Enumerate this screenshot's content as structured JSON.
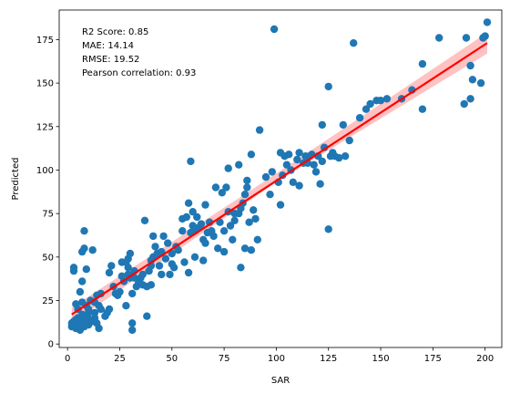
{
  "chart_data": {
    "type": "scatter",
    "title": "",
    "xlabel": "SAR",
    "ylabel": "Predicted",
    "xlim": [
      -4,
      208
    ],
    "ylim": [
      -2,
      192
    ],
    "xticks": [
      0,
      25,
      50,
      75,
      100,
      125,
      150,
      175,
      200
    ],
    "yticks": [
      0,
      25,
      50,
      75,
      100,
      125,
      150,
      175
    ],
    "grid": false,
    "annotations": [
      "R2 Score: 0.85",
      "MAE: 14.14",
      "RMSE: 19.52",
      "Pearson correlation: 0.93"
    ],
    "colors": {
      "points": "#1f77b4",
      "fit_line": "#ff0000",
      "confidence_band": "#ffb3b3"
    },
    "fit_line": {
      "x": [
        2,
        201
      ],
      "y": [
        17,
        173
      ]
    },
    "confidence_band": {
      "x": [
        2,
        100,
        201
      ],
      "lower": [
        12,
        93,
        167
      ],
      "upper": [
        21,
        98,
        179
      ]
    },
    "points": [
      [
        2,
        10
      ],
      [
        2,
        12
      ],
      [
        3,
        11
      ],
      [
        3,
        13
      ],
      [
        4,
        9
      ],
      [
        4,
        14
      ],
      [
        5,
        12
      ],
      [
        5,
        15
      ],
      [
        6,
        8
      ],
      [
        6,
        11
      ],
      [
        7,
        13
      ],
      [
        7,
        17
      ],
      [
        8,
        10
      ],
      [
        8,
        14
      ],
      [
        9,
        12
      ],
      [
        9,
        16
      ],
      [
        10,
        11
      ],
      [
        10,
        18
      ],
      [
        11,
        14
      ],
      [
        12,
        13
      ],
      [
        13,
        15
      ],
      [
        14,
        12
      ],
      [
        3,
        44
      ],
      [
        3,
        42
      ],
      [
        4,
        23
      ],
      [
        5,
        20
      ],
      [
        6,
        30
      ],
      [
        7,
        24
      ],
      [
        7,
        36
      ],
      [
        7,
        53
      ],
      [
        8,
        65
      ],
      [
        8,
        55
      ],
      [
        9,
        22
      ],
      [
        9,
        43
      ],
      [
        10,
        20
      ],
      [
        11,
        25
      ],
      [
        12,
        54
      ],
      [
        13,
        18
      ],
      [
        13,
        24
      ],
      [
        14,
        28
      ],
      [
        15,
        9
      ],
      [
        15,
        22
      ],
      [
        16,
        29
      ],
      [
        16,
        20
      ],
      [
        18,
        16
      ],
      [
        19,
        18
      ],
      [
        20,
        20
      ],
      [
        20,
        41
      ],
      [
        21,
        45
      ],
      [
        22,
        33
      ],
      [
        23,
        29
      ],
      [
        24,
        28
      ],
      [
        25,
        30
      ],
      [
        26,
        39
      ],
      [
        26,
        47
      ],
      [
        27,
        36
      ],
      [
        28,
        22
      ],
      [
        28,
        47
      ],
      [
        29,
        40
      ],
      [
        29,
        44
      ],
      [
        29,
        49
      ],
      [
        30,
        38
      ],
      [
        30,
        52
      ],
      [
        31,
        29
      ],
      [
        31,
        8
      ],
      [
        31,
        12
      ],
      [
        32,
        38
      ],
      [
        32,
        42
      ],
      [
        33,
        33
      ],
      [
        34,
        35
      ],
      [
        35,
        38
      ],
      [
        36,
        40
      ],
      [
        36,
        34
      ],
      [
        37,
        71
      ],
      [
        38,
        33
      ],
      [
        38,
        16
      ],
      [
        39,
        42
      ],
      [
        40,
        45
      ],
      [
        40,
        48
      ],
      [
        40,
        34
      ],
      [
        41,
        62
      ],
      [
        41,
        50
      ],
      [
        42,
        56
      ],
      [
        43,
        52
      ],
      [
        44,
        45
      ],
      [
        45,
        40
      ],
      [
        45,
        53
      ],
      [
        46,
        62
      ],
      [
        47,
        49
      ],
      [
        48,
        58
      ],
      [
        49,
        40
      ],
      [
        50,
        52
      ],
      [
        50,
        46
      ],
      [
        51,
        44
      ],
      [
        52,
        56
      ],
      [
        53,
        54
      ],
      [
        55,
        65
      ],
      [
        55,
        72
      ],
      [
        56,
        47
      ],
      [
        57,
        73
      ],
      [
        58,
        81
      ],
      [
        58,
        41
      ],
      [
        59,
        64
      ],
      [
        59,
        105
      ],
      [
        60,
        68
      ],
      [
        60,
        76
      ],
      [
        61,
        50
      ],
      [
        61,
        65
      ],
      [
        62,
        73
      ],
      [
        63,
        67
      ],
      [
        64,
        69
      ],
      [
        65,
        60
      ],
      [
        65,
        48
      ],
      [
        66,
        80
      ],
      [
        66,
        58
      ],
      [
        67,
        64
      ],
      [
        68,
        70
      ],
      [
        69,
        65
      ],
      [
        70,
        62
      ],
      [
        71,
        90
      ],
      [
        72,
        55
      ],
      [
        73,
        70
      ],
      [
        74,
        87
      ],
      [
        75,
        65
      ],
      [
        75,
        53
      ],
      [
        76,
        90
      ],
      [
        77,
        76
      ],
      [
        77,
        101
      ],
      [
        78,
        68
      ],
      [
        79,
        60
      ],
      [
        80,
        71
      ],
      [
        80,
        75
      ],
      [
        82,
        103
      ],
      [
        82,
        75
      ],
      [
        83,
        78
      ],
      [
        83,
        44
      ],
      [
        84,
        81
      ],
      [
        85,
        55
      ],
      [
        85,
        86
      ],
      [
        86,
        94
      ],
      [
        86,
        90
      ],
      [
        87,
        70
      ],
      [
        88,
        109
      ],
      [
        88,
        54
      ],
      [
        89,
        77
      ],
      [
        90,
        72
      ],
      [
        91,
        60
      ],
      [
        92,
        123
      ],
      [
        95,
        96
      ],
      [
        97,
        86
      ],
      [
        98,
        99
      ],
      [
        99,
        181
      ],
      [
        101,
        93
      ],
      [
        102,
        80
      ],
      [
        102,
        110
      ],
      [
        103,
        97
      ],
      [
        104,
        108
      ],
      [
        105,
        103
      ],
      [
        106,
        109
      ],
      [
        107,
        100
      ],
      [
        108,
        93
      ],
      [
        110,
        106
      ],
      [
        111,
        91
      ],
      [
        111,
        110
      ],
      [
        113,
        104
      ],
      [
        114,
        108
      ],
      [
        115,
        104
      ],
      [
        116,
        108
      ],
      [
        117,
        109
      ],
      [
        118,
        103
      ],
      [
        119,
        99
      ],
      [
        120,
        108
      ],
      [
        121,
        92
      ],
      [
        122,
        105
      ],
      [
        122,
        126
      ],
      [
        123,
        113
      ],
      [
        125,
        66
      ],
      [
        125,
        148
      ],
      [
        126,
        108
      ],
      [
        127,
        110
      ],
      [
        128,
        108
      ],
      [
        130,
        107
      ],
      [
        132,
        126
      ],
      [
        133,
        108
      ],
      [
        135,
        117
      ],
      [
        137,
        173
      ],
      [
        140,
        130
      ],
      [
        143,
        135
      ],
      [
        145,
        138
      ],
      [
        148,
        140
      ],
      [
        150,
        140
      ],
      [
        153,
        141
      ],
      [
        160,
        141
      ],
      [
        165,
        146
      ],
      [
        170,
        135
      ],
      [
        170,
        161
      ],
      [
        178,
        176
      ],
      [
        190,
        138
      ],
      [
        191,
        176
      ],
      [
        193,
        141
      ],
      [
        193,
        160
      ],
      [
        194,
        152
      ],
      [
        198,
        150
      ],
      [
        199,
        176
      ],
      [
        200,
        177
      ],
      [
        201,
        185
      ]
    ]
  }
}
